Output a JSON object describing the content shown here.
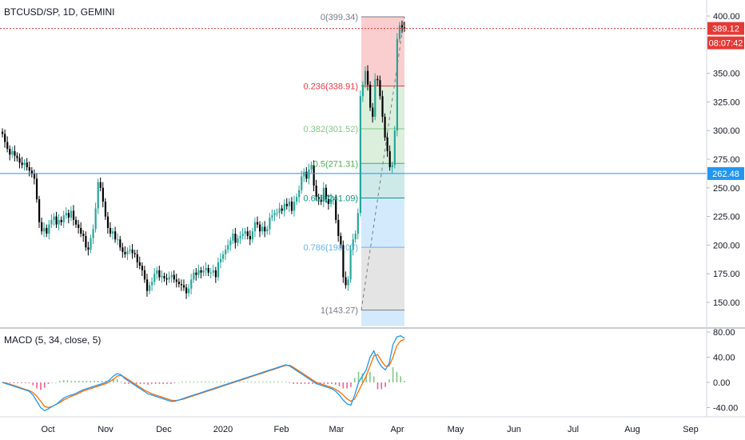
{
  "header": {
    "symbol": "BTCUSD/SP, 1D, GEMINI",
    "macd_label": "MACD (5, 34, close, 5)"
  },
  "colors": {
    "up": "#26a69a",
    "down": "#000000",
    "down_candle": "#ef5350",
    "macd_line": "#2196f3",
    "signal_line": "#ff6d00",
    "hist_pos": "#4caf50",
    "hist_neg": "#e91e63",
    "hline": "#2196f3",
    "price_line": "#e53935"
  },
  "chart_data": [
    {
      "type": "candlestick",
      "title": "BTCUSD/SP, 1D, GEMINI",
      "x_ticks": [
        "Oct",
        "Nov",
        "Dec",
        "2020",
        "Feb",
        "Mar",
        "Apr",
        "May",
        "Jun",
        "Jul",
        "Aug",
        "Sep"
      ],
      "y_ticks": [
        "400.00",
        "375.00",
        "350.00",
        "325.00",
        "300.00",
        "275.00",
        "250.00",
        "225.00",
        "200.00",
        "175.00",
        "150.00"
      ],
      "ylim": [
        140,
        402
      ],
      "ohlc_start": "2019-09-08",
      "closes": [
        297,
        290,
        284,
        279,
        282,
        278,
        276,
        272,
        270,
        272,
        268,
        265,
        262,
        258,
        240,
        220,
        212,
        215,
        210,
        218,
        222,
        225,
        218,
        222,
        220,
        226,
        228,
        224,
        230,
        222,
        218,
        215,
        210,
        208,
        198,
        196,
        206,
        214,
        232,
        255,
        250,
        238,
        225,
        215,
        210,
        212,
        205,
        205,
        198,
        194,
        192,
        195,
        196,
        193,
        192,
        185,
        182,
        178,
        170,
        160,
        165,
        168,
        175,
        178,
        172,
        173,
        171,
        170,
        172,
        174,
        170,
        168,
        166,
        165,
        163,
        158,
        162,
        170,
        176,
        174,
        178,
        176,
        178,
        180,
        176,
        176,
        178,
        172,
        185,
        188,
        192,
        196,
        200,
        204,
        210,
        202,
        206,
        208,
        210,
        212,
        208,
        205,
        212,
        220,
        218,
        212,
        216,
        212,
        214,
        224,
        226,
        228,
        228,
        232,
        230,
        236,
        234,
        238,
        230,
        238,
        242,
        248,
        260,
        264,
        258,
        266,
        270,
        252,
        242,
        240,
        238,
        250,
        240,
        236,
        240,
        240,
        222,
        208,
        200,
        172,
        165,
        170,
        196,
        205,
        210,
        228,
        330,
        340,
        352,
        340,
        320,
        312,
        345,
        344,
        330,
        312,
        294,
        282,
        268,
        270,
        300,
        380,
        392,
        390,
        389.12
      ],
      "hlines": [
        262.48
      ],
      "price_badge": {
        "value": "389.12",
        "countdown": "08:07:42"
      },
      "level_badge": {
        "value": "262.48"
      },
      "fib_levels": [
        {
          "label": "0(399.34)",
          "value": 399.34,
          "color": "#787b86"
        },
        {
          "label": "0.236(338.91)",
          "value": 338.91,
          "color": "#f23645"
        },
        {
          "label": "0.382(301.52)",
          "value": 301.52,
          "color": "#81c784"
        },
        {
          "label": "0.5(271.31)",
          "value": 271.31,
          "color": "#4caf50"
        },
        {
          "label": "0.618(241.09)",
          "value": 241.09,
          "color": "#089981"
        },
        {
          "label": "0.786(198.07)",
          "value": 198.07,
          "color": "#64b5f6"
        },
        {
          "label": "1(143.27)",
          "value": 143.27,
          "color": "#787b86"
        }
      ]
    },
    {
      "type": "line",
      "title": "MACD (5, 34, close, 5)",
      "y_ticks": [
        "80.00",
        "40.00",
        "0.00",
        "-40.00"
      ],
      "ylim": [
        -48,
        90
      ],
      "series": [
        {
          "role": "macd",
          "values": [
            0,
            -2,
            -4,
            -6,
            -8,
            -10,
            -12,
            -14,
            -20,
            -30,
            -40,
            -45,
            -42,
            -38,
            -35,
            -30,
            -25,
            -22,
            -20,
            -18,
            -15,
            -12,
            -10,
            -8,
            -6,
            -4,
            -2,
            0,
            4,
            10,
            14,
            12,
            6,
            2,
            -2,
            -6,
            -10,
            -14,
            -18,
            -20,
            -22,
            -24,
            -26,
            -28,
            -30,
            -30,
            -28,
            -26,
            -24,
            -22,
            -20,
            -18,
            -16,
            -14,
            -12,
            -10,
            -8,
            -6,
            -4,
            -2,
            0,
            2,
            4,
            6,
            8,
            10,
            12,
            14,
            16,
            18,
            20,
            22,
            24,
            26,
            28,
            26,
            22,
            18,
            14,
            10,
            6,
            2,
            -2,
            -4,
            -6,
            -8,
            -10,
            -14,
            -20,
            -28,
            -34,
            -36,
            -20,
            0,
            10,
            20,
            40,
            50,
            35,
            25,
            20,
            30,
            60,
            72,
            74,
            70
          ]
        },
        {
          "role": "signal",
          "values": [
            0,
            -1,
            -3,
            -5,
            -7,
            -9,
            -11,
            -13,
            -16,
            -22,
            -30,
            -38,
            -40,
            -38,
            -35,
            -32,
            -28,
            -25,
            -22,
            -20,
            -17,
            -14,
            -12,
            -10,
            -8,
            -6,
            -4,
            -2,
            1,
            5,
            10,
            11,
            8,
            4,
            0,
            -4,
            -8,
            -12,
            -15,
            -18,
            -20,
            -22,
            -24,
            -26,
            -28,
            -29,
            -28,
            -27,
            -25,
            -23,
            -21,
            -19,
            -17,
            -15,
            -13,
            -11,
            -9,
            -7,
            -5,
            -3,
            -1,
            1,
            3,
            5,
            7,
            9,
            11,
            13,
            15,
            17,
            19,
            21,
            23,
            25,
            27,
            27,
            24,
            20,
            16,
            12,
            8,
            4,
            0,
            -2,
            -4,
            -6,
            -8,
            -11,
            -15,
            -20,
            -26,
            -30,
            -26,
            -14,
            -2,
            10,
            26,
            42,
            44,
            34,
            26,
            26,
            40,
            58,
            66,
            68
          ]
        }
      ]
    }
  ]
}
